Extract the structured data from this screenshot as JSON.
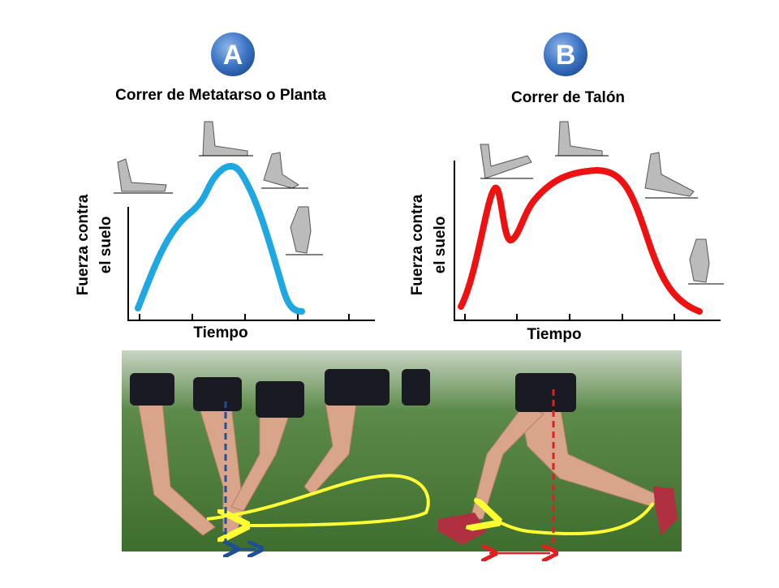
{
  "panels": [
    {
      "badge": "A",
      "title": "Correr de Metatarso o Planta",
      "y_label": [
        "Fuerza contra",
        "el suelo"
      ],
      "x_label": "Tiempo"
    },
    {
      "badge": "B",
      "title": "Correr de Talón",
      "y_label": [
        "Fuerza contra",
        "el suelo"
      ],
      "x_label": "Tiempo"
    }
  ]
}
